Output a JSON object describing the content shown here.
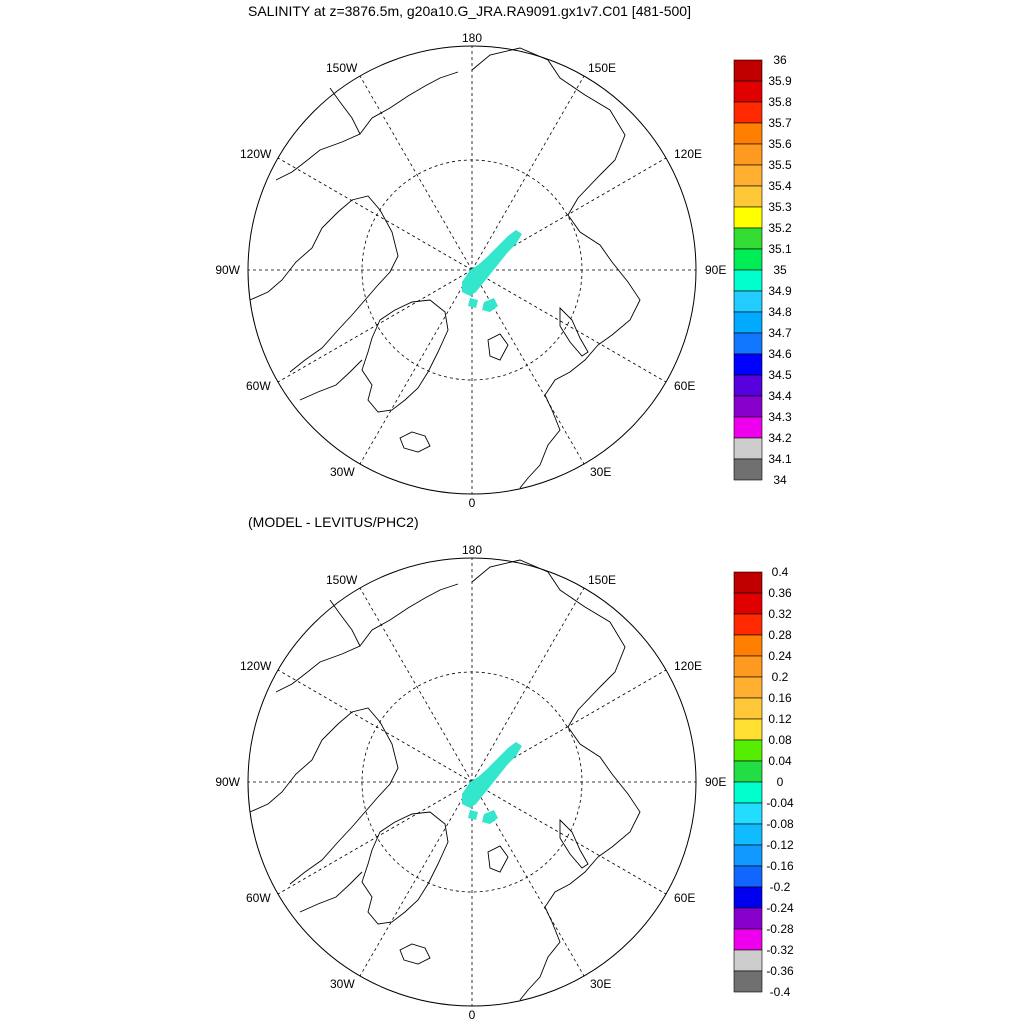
{
  "top_panel": {
    "title": "SALINITY at z=3876.5m, g20a10.G_JRA.RA9091.gx1v7.C01 [481-500]",
    "colorbar_labels": [
      "36",
      "35.9",
      "35.8",
      "35.7",
      "35.6",
      "35.5",
      "35.4",
      "35.3",
      "35.2",
      "35.1",
      "35",
      "34.9",
      "34.8",
      "34.7",
      "34.6",
      "34.5",
      "34.4",
      "34.3",
      "34.2",
      "34.1",
      "34"
    ],
    "colorbar_colors": [
      "#c00000",
      "#e00000",
      "#ff2a00",
      "#ff8000",
      "#ff9a20",
      "#ffb030",
      "#ffc838",
      "#ffff00",
      "#33dd33",
      "#00ee55",
      "#00ffcc",
      "#22ccff",
      "#00aaff",
      "#1177ff",
      "#0000ff",
      "#5500dd",
      "#8800cc",
      "#ee00ee",
      "#cccccc",
      "#707070"
    ],
    "field_color": "#33e6cc"
  },
  "bottom_panel": {
    "title": "(MODEL - LEVITUS/PHC2)",
    "colorbar_labels": [
      "0.4",
      "0.36",
      "0.32",
      "0.28",
      "0.24",
      "0.2",
      "0.16",
      "0.12",
      "0.08",
      "0.04",
      "0",
      "-0.04",
      "-0.08",
      "-0.12",
      "-0.16",
      "-0.2",
      "-0.24",
      "-0.28",
      "-0.32",
      "-0.36",
      "-0.4"
    ],
    "colorbar_colors": [
      "#c00000",
      "#e00000",
      "#ff2a00",
      "#ff8000",
      "#ff9a20",
      "#ffb030",
      "#ffc838",
      "#ffe030",
      "#55ee00",
      "#22dd44",
      "#00ffcc",
      "#22ddff",
      "#11bbff",
      "#1199ff",
      "#1166ff",
      "#0000ee",
      "#8800cc",
      "#ee00ee",
      "#cccccc",
      "#707070"
    ],
    "field_color": "#33e6cc"
  },
  "longitude_labels": {
    "n": "180",
    "s": "0",
    "w90": "90W",
    "e90": "90E",
    "w150": "150W",
    "e150": "150E",
    "w120": "120W",
    "e120": "120E",
    "w60": "60W",
    "e60": "60E",
    "w30": "30W",
    "e30": "30E"
  }
}
